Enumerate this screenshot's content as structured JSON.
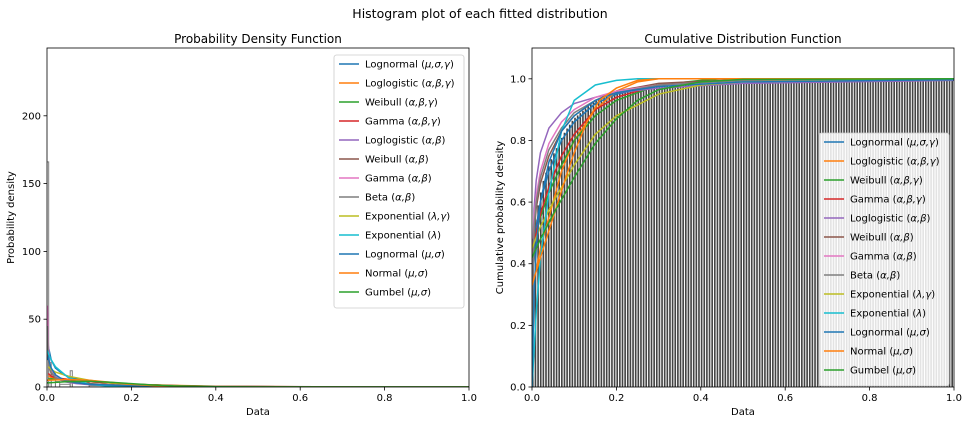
{
  "figure": {
    "suptitle": "Histogram plot of each fitted distribution"
  },
  "chart_data": [
    {
      "type": "line",
      "title": "Probability Density Function",
      "xlabel": "Data",
      "ylabel": "Probability density",
      "xlim": [
        0,
        1
      ],
      "ylim": [
        0,
        250
      ],
      "xticks": [
        "0.0",
        "0.2",
        "0.4",
        "0.6",
        "0.8",
        "1.0"
      ],
      "yticks": [
        "0",
        "50",
        "100",
        "150",
        "200"
      ],
      "legend_position": "top-right",
      "histogram": [
        {
          "x0": 0.0,
          "x1": 0.004,
          "y": 166
        },
        {
          "x0": 0.004,
          "x1": 0.01,
          "y": 18
        },
        {
          "x0": 0.01,
          "x1": 0.02,
          "y": 10
        },
        {
          "x0": 0.02,
          "x1": 0.03,
          "y": 4
        },
        {
          "x0": 0.03,
          "x1": 0.055,
          "y": 2
        },
        {
          "x0": 0.055,
          "x1": 0.06,
          "y": 12
        },
        {
          "x0": 0.06,
          "x1": 0.1,
          "y": 3
        },
        {
          "x0": 0.1,
          "x1": 0.2,
          "y": 1
        }
      ],
      "series": [
        {
          "name": "Lognormal ($\\mu,\\sigma,\\gamma$)",
          "color": "#1f77b4",
          "x": [
            0.003,
            0.01,
            0.02,
            0.04,
            0.07,
            0.1,
            0.15,
            0.2,
            0.3,
            0.4,
            0.6,
            1.0
          ],
          "y": [
            30,
            20,
            14,
            9,
            6,
            4.5,
            3,
            2,
            1,
            0.5,
            0.1,
            0
          ]
        },
        {
          "name": "Loglogistic ($\\alpha,\\beta,\\gamma$)",
          "color": "#ff7f0e",
          "x": [
            0.003,
            0.01,
            0.02,
            0.04,
            0.07,
            0.1,
            0.15,
            0.2,
            0.3,
            0.4,
            0.6,
            1.0
          ],
          "y": [
            8,
            7,
            6.5,
            6,
            5,
            4,
            3,
            2,
            1.2,
            0.6,
            0.2,
            0
          ]
        },
        {
          "name": "Weibull ($\\alpha,\\beta,\\gamma$)",
          "color": "#2ca02c",
          "x": [
            0.003,
            0.01,
            0.02,
            0.04,
            0.07,
            0.1,
            0.15,
            0.2,
            0.3,
            0.4,
            0.6,
            1.0
          ],
          "y": [
            6,
            6,
            5.5,
            5,
            4.5,
            4,
            3,
            2,
            1,
            0.4,
            0.05,
            0
          ]
        },
        {
          "name": "Gamma ($\\alpha,\\beta,\\gamma$)",
          "color": "#d62728",
          "x": [
            0.003,
            0.01,
            0.02,
            0.04,
            0.07,
            0.1,
            0.15,
            0.2,
            0.3,
            0.4,
            0.6,
            1.0
          ],
          "y": [
            10,
            8,
            7,
            6,
            5,
            4,
            3,
            2,
            1,
            0.4,
            0.05,
            0
          ]
        },
        {
          "name": "Loglogistic ($\\alpha,\\beta$)",
          "color": "#9467bd",
          "x": [
            0.001,
            0.003,
            0.006,
            0.01,
            0.02,
            0.04,
            0.07,
            0.1,
            0.2,
            0.4,
            1.0
          ],
          "y": [
            55,
            30,
            18,
            12,
            7,
            4,
            2.5,
            1.8,
            0.8,
            0.3,
            0
          ]
        },
        {
          "name": "Weibull ($\\alpha,\\beta$)",
          "color": "#8c564b",
          "x": [
            0.001,
            0.003,
            0.006,
            0.01,
            0.02,
            0.04,
            0.07,
            0.1,
            0.2,
            0.4,
            1.0
          ],
          "y": [
            40,
            22,
            14,
            10,
            7,
            5,
            3.5,
            2.5,
            1,
            0.3,
            0
          ]
        },
        {
          "name": "Gamma ($\\alpha,\\beta$)",
          "color": "#e377c2",
          "x": [
            0.001,
            0.003,
            0.006,
            0.01,
            0.02,
            0.04,
            0.07,
            0.1,
            0.2,
            0.4,
            1.0
          ],
          "y": [
            60,
            32,
            18,
            12,
            8,
            5,
            3,
            2,
            0.8,
            0.2,
            0
          ]
        },
        {
          "name": "Beta ($\\alpha,\\beta$)",
          "color": "#7f7f7f",
          "x": [
            0.001,
            0.003,
            0.006,
            0.01,
            0.02,
            0.04,
            0.07,
            0.1,
            0.2,
            0.4,
            1.0
          ],
          "y": [
            45,
            25,
            15,
            11,
            7,
            4.5,
            3,
            2,
            0.8,
            0.2,
            0
          ]
        },
        {
          "name": "Exponential ($\\lambda,\\gamma$)",
          "color": "#bcbd22",
          "x": [
            0.003,
            0.01,
            0.02,
            0.05,
            0.1,
            0.15,
            0.2,
            0.3,
            0.4,
            0.6,
            1.0
          ],
          "y": [
            15,
            13,
            11,
            8,
            5,
            3,
            2,
            0.8,
            0.3,
            0.05,
            0
          ]
        },
        {
          "name": "Exponential ($\\lambda$)",
          "color": "#17becf",
          "x": [
            0.0,
            0.01,
            0.02,
            0.05,
            0.1,
            0.15,
            0.2,
            0.3,
            0.4,
            0.6,
            1.0
          ],
          "y": [
            27,
            20,
            15,
            7,
            2,
            0.6,
            0.2,
            0.02,
            0,
            0,
            0
          ]
        },
        {
          "name": "Lognormal ($\\mu,\\sigma$)",
          "color": "#1f77b4",
          "x": [
            0.001,
            0.003,
            0.006,
            0.01,
            0.02,
            0.04,
            0.07,
            0.1,
            0.2,
            0.4,
            1.0
          ],
          "y": [
            20,
            22,
            18,
            14,
            9,
            5,
            3,
            2,
            0.8,
            0.2,
            0
          ]
        },
        {
          "name": "Normal ($\\mu,\\sigma$)",
          "color": "#ff7f0e",
          "x": [
            0.0,
            0.05,
            0.1,
            0.15,
            0.2,
            0.25,
            0.3,
            0.4,
            1.0
          ],
          "y": [
            5,
            5.5,
            5,
            3.5,
            2,
            1,
            0.4,
            0.05,
            0
          ]
        },
        {
          "name": "Gumbel ($\\mu,\\sigma$)",
          "color": "#2ca02c",
          "x": [
            0.0,
            0.05,
            0.1,
            0.15,
            0.2,
            0.25,
            0.3,
            0.4,
            0.5,
            1.0
          ],
          "y": [
            3,
            4,
            4.2,
            3.5,
            2.5,
            1.5,
            0.8,
            0.2,
            0.05,
            0
          ]
        }
      ]
    },
    {
      "type": "line",
      "title": "Cumulative Distribution Function",
      "xlabel": "Data",
      "ylabel": "Cumulative probability density",
      "xlim": [
        0,
        1
      ],
      "ylim": [
        0,
        1.1
      ],
      "xticks": [
        "0.0",
        "0.2",
        "0.4",
        "0.6",
        "0.8",
        "1.0"
      ],
      "yticks": [
        "0.0",
        "0.2",
        "0.4",
        "0.6",
        "0.8",
        "1.0"
      ],
      "legend_position": "lower-right",
      "ecdf_bars": {
        "x_start": 0.0,
        "x_end": 1.0,
        "count": 160,
        "color": "#444444",
        "x": [
          0,
          0.01,
          0.02,
          0.03,
          0.05,
          0.08,
          0.1,
          0.15,
          0.2,
          0.3,
          0.5,
          1.0
        ],
        "y": [
          0.45,
          0.55,
          0.62,
          0.68,
          0.75,
          0.83,
          0.87,
          0.93,
          0.96,
          0.975,
          0.985,
          0.995
        ]
      },
      "series": [
        {
          "name": "Lognormal ($\\mu,\\sigma,\\gamma$)",
          "color": "#1f77b4",
          "x": [
            0,
            0.003,
            0.01,
            0.02,
            0.04,
            0.07,
            0.1,
            0.15,
            0.2,
            0.3,
            0.4,
            0.6,
            1.0
          ],
          "y": [
            0,
            0.4,
            0.52,
            0.6,
            0.7,
            0.8,
            0.86,
            0.92,
            0.95,
            0.98,
            0.99,
            1,
            1
          ]
        },
        {
          "name": "Loglogistic ($\\alpha,\\beta,\\gamma$)",
          "color": "#ff7f0e",
          "x": [
            0,
            0.01,
            0.02,
            0.04,
            0.07,
            0.1,
            0.15,
            0.2,
            0.25,
            0.3,
            0.35,
            1.0
          ],
          "y": [
            0.33,
            0.38,
            0.45,
            0.55,
            0.7,
            0.8,
            0.9,
            0.96,
            0.99,
            1,
            1,
            1
          ]
        },
        {
          "name": "Weibull ($\\alpha,\\beta,\\gamma$)",
          "color": "#2ca02c",
          "x": [
            0,
            0.01,
            0.02,
            0.04,
            0.07,
            0.1,
            0.15,
            0.2,
            0.3,
            0.4,
            0.45,
            1.0
          ],
          "y": [
            0.45,
            0.5,
            0.55,
            0.63,
            0.72,
            0.8,
            0.88,
            0.93,
            0.98,
            0.995,
            1,
            1
          ]
        },
        {
          "name": "Gamma ($\\alpha,\\beta,\\gamma$)",
          "color": "#d62728",
          "x": [
            0,
            0.01,
            0.02,
            0.04,
            0.07,
            0.1,
            0.15,
            0.2,
            0.3,
            0.4,
            0.6,
            1.0
          ],
          "y": [
            0.45,
            0.5,
            0.56,
            0.65,
            0.75,
            0.82,
            0.9,
            0.94,
            0.98,
            0.99,
            1,
            1
          ]
        },
        {
          "name": "Loglogistic ($\\alpha,\\beta$)",
          "color": "#9467bd",
          "x": [
            0,
            0.001,
            0.005,
            0.01,
            0.02,
            0.04,
            0.07,
            0.1,
            0.15,
            0.2,
            0.3,
            0.5,
            1.0
          ],
          "y": [
            0,
            0.35,
            0.58,
            0.67,
            0.76,
            0.84,
            0.89,
            0.92,
            0.94,
            0.955,
            0.97,
            0.985,
            0.995
          ]
        },
        {
          "name": "Weibull ($\\alpha,\\beta$)",
          "color": "#8c564b",
          "x": [
            0,
            0.001,
            0.005,
            0.01,
            0.02,
            0.04,
            0.07,
            0.1,
            0.15,
            0.2,
            0.3,
            0.5,
            1.0
          ],
          "y": [
            0,
            0.3,
            0.5,
            0.58,
            0.66,
            0.75,
            0.83,
            0.88,
            0.93,
            0.96,
            0.985,
            0.998,
            1
          ]
        },
        {
          "name": "Gamma ($\\alpha,\\beta$)",
          "color": "#e377c2",
          "x": [
            0,
            0.001,
            0.005,
            0.01,
            0.02,
            0.04,
            0.07,
            0.1,
            0.15,
            0.2,
            0.3,
            0.5,
            1.0
          ],
          "y": [
            0,
            0.33,
            0.55,
            0.62,
            0.7,
            0.79,
            0.86,
            0.9,
            0.94,
            0.96,
            0.98,
            0.995,
            1
          ]
        },
        {
          "name": "Beta ($\\alpha,\\beta$)",
          "color": "#7f7f7f",
          "x": [
            0,
            0.001,
            0.005,
            0.01,
            0.02,
            0.04,
            0.07,
            0.1,
            0.15,
            0.2,
            0.3,
            0.5,
            1.0
          ],
          "y": [
            0,
            0.3,
            0.52,
            0.6,
            0.68,
            0.77,
            0.84,
            0.89,
            0.93,
            0.955,
            0.98,
            0.995,
            1
          ]
        },
        {
          "name": "Exponential ($\\lambda,\\gamma$)",
          "color": "#bcbd22",
          "x": [
            0,
            0.02,
            0.05,
            0.1,
            0.15,
            0.2,
            0.3,
            0.4,
            0.5,
            1.0
          ],
          "y": [
            0.45,
            0.52,
            0.6,
            0.72,
            0.82,
            0.88,
            0.95,
            0.98,
            0.99,
            1
          ]
        },
        {
          "name": "Exponential ($\\lambda$)",
          "color": "#17becf",
          "x": [
            0,
            0.01,
            0.02,
            0.04,
            0.07,
            0.1,
            0.15,
            0.2,
            0.25,
            0.3,
            0.35,
            1.0
          ],
          "y": [
            0,
            0.24,
            0.42,
            0.63,
            0.83,
            0.93,
            0.98,
            0.995,
            1,
            1,
            1,
            1
          ]
        },
        {
          "name": "Lognormal ($\\mu,\\sigma$)",
          "color": "#1f77b4",
          "x": [
            0,
            0.002,
            0.005,
            0.01,
            0.02,
            0.04,
            0.07,
            0.1,
            0.15,
            0.2,
            0.3,
            0.5,
            1.0
          ],
          "y": [
            0,
            0.12,
            0.3,
            0.45,
            0.6,
            0.73,
            0.83,
            0.88,
            0.93,
            0.955,
            0.975,
            0.99,
            0.997
          ]
        },
        {
          "name": "Normal ($\\mu,\\sigma$)",
          "color": "#ff7f0e",
          "x": [
            0,
            0.02,
            0.05,
            0.08,
            0.1,
            0.13,
            0.16,
            0.2,
            0.25,
            0.3,
            1.0
          ],
          "y": [
            0.33,
            0.42,
            0.55,
            0.68,
            0.76,
            0.86,
            0.93,
            0.97,
            0.995,
            1,
            1
          ]
        },
        {
          "name": "Gumbel ($\\mu,\\sigma$)",
          "color": "#2ca02c",
          "x": [
            0,
            0.02,
            0.05,
            0.1,
            0.15,
            0.2,
            0.25,
            0.3,
            0.4,
            0.5,
            1.0
          ],
          "y": [
            0.42,
            0.48,
            0.56,
            0.68,
            0.79,
            0.87,
            0.93,
            0.965,
            0.99,
            0.998,
            1
          ]
        }
      ]
    }
  ]
}
